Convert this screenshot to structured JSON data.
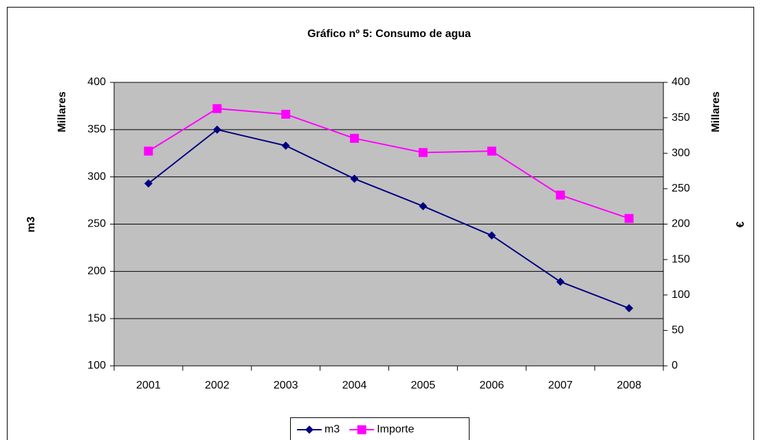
{
  "chart_data": {
    "type": "line",
    "title": "Gráfico nº 5: Consumo de agua",
    "y_label": "m3",
    "y_unit_label": "Millares",
    "y2_label": "€",
    "y2_unit_label": "Millares",
    "categories": [
      "2001",
      "2002",
      "2003",
      "2004",
      "2005",
      "2006",
      "2007",
      "2008"
    ],
    "series": [
      {
        "name": "m3",
        "color": "#000080",
        "marker": "diamond",
        "values": [
          293,
          350,
          333,
          298,
          269,
          238,
          189,
          161
        ]
      },
      {
        "name": "Importe",
        "color": "#ff00ff",
        "marker": "square",
        "axis": "y2",
        "values": [
          303,
          363,
          355,
          321,
          301,
          303,
          241,
          208
        ]
      }
    ],
    "ylim": [
      100,
      400
    ],
    "yticks": [
      100,
      150,
      200,
      250,
      300,
      350,
      400
    ],
    "y2lim": [
      0,
      400
    ],
    "y2ticks": [
      0,
      50,
      100,
      150,
      200,
      250,
      300,
      350,
      400
    ],
    "grid": true,
    "legend": "bottom",
    "plot_background": "#c0c0c0"
  }
}
